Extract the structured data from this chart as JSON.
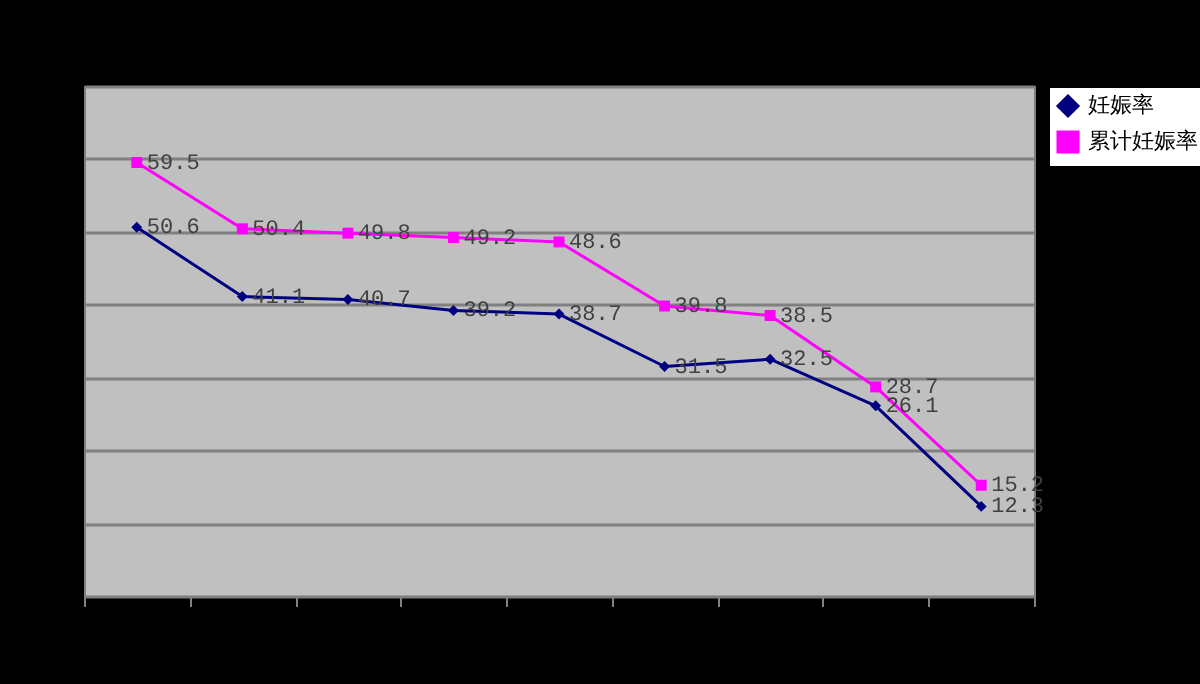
{
  "chart_data": {
    "type": "line",
    "categories": [
      null,
      null,
      null,
      null,
      null,
      null,
      null,
      null,
      null
    ],
    "series": [
      {
        "name": "妊娠率",
        "color": "#000080",
        "marker": "diamond",
        "values": [
          50.6,
          41.1,
          40.7,
          39.2,
          38.7,
          31.5,
          32.5,
          26.1,
          12.3
        ]
      },
      {
        "name": "累计妊娠率",
        "color": "#ff00ff",
        "marker": "square",
        "values": [
          59.5,
          50.4,
          49.8,
          49.2,
          48.6,
          39.8,
          38.5,
          28.7,
          15.2
        ]
      }
    ],
    "ylim": [
      0,
      70
    ],
    "yticks": [
      0,
      10,
      20,
      30,
      40,
      50,
      60,
      70
    ],
    "tick_labels": false,
    "grid": "y",
    "legend": "right",
    "data_labels": true
  }
}
